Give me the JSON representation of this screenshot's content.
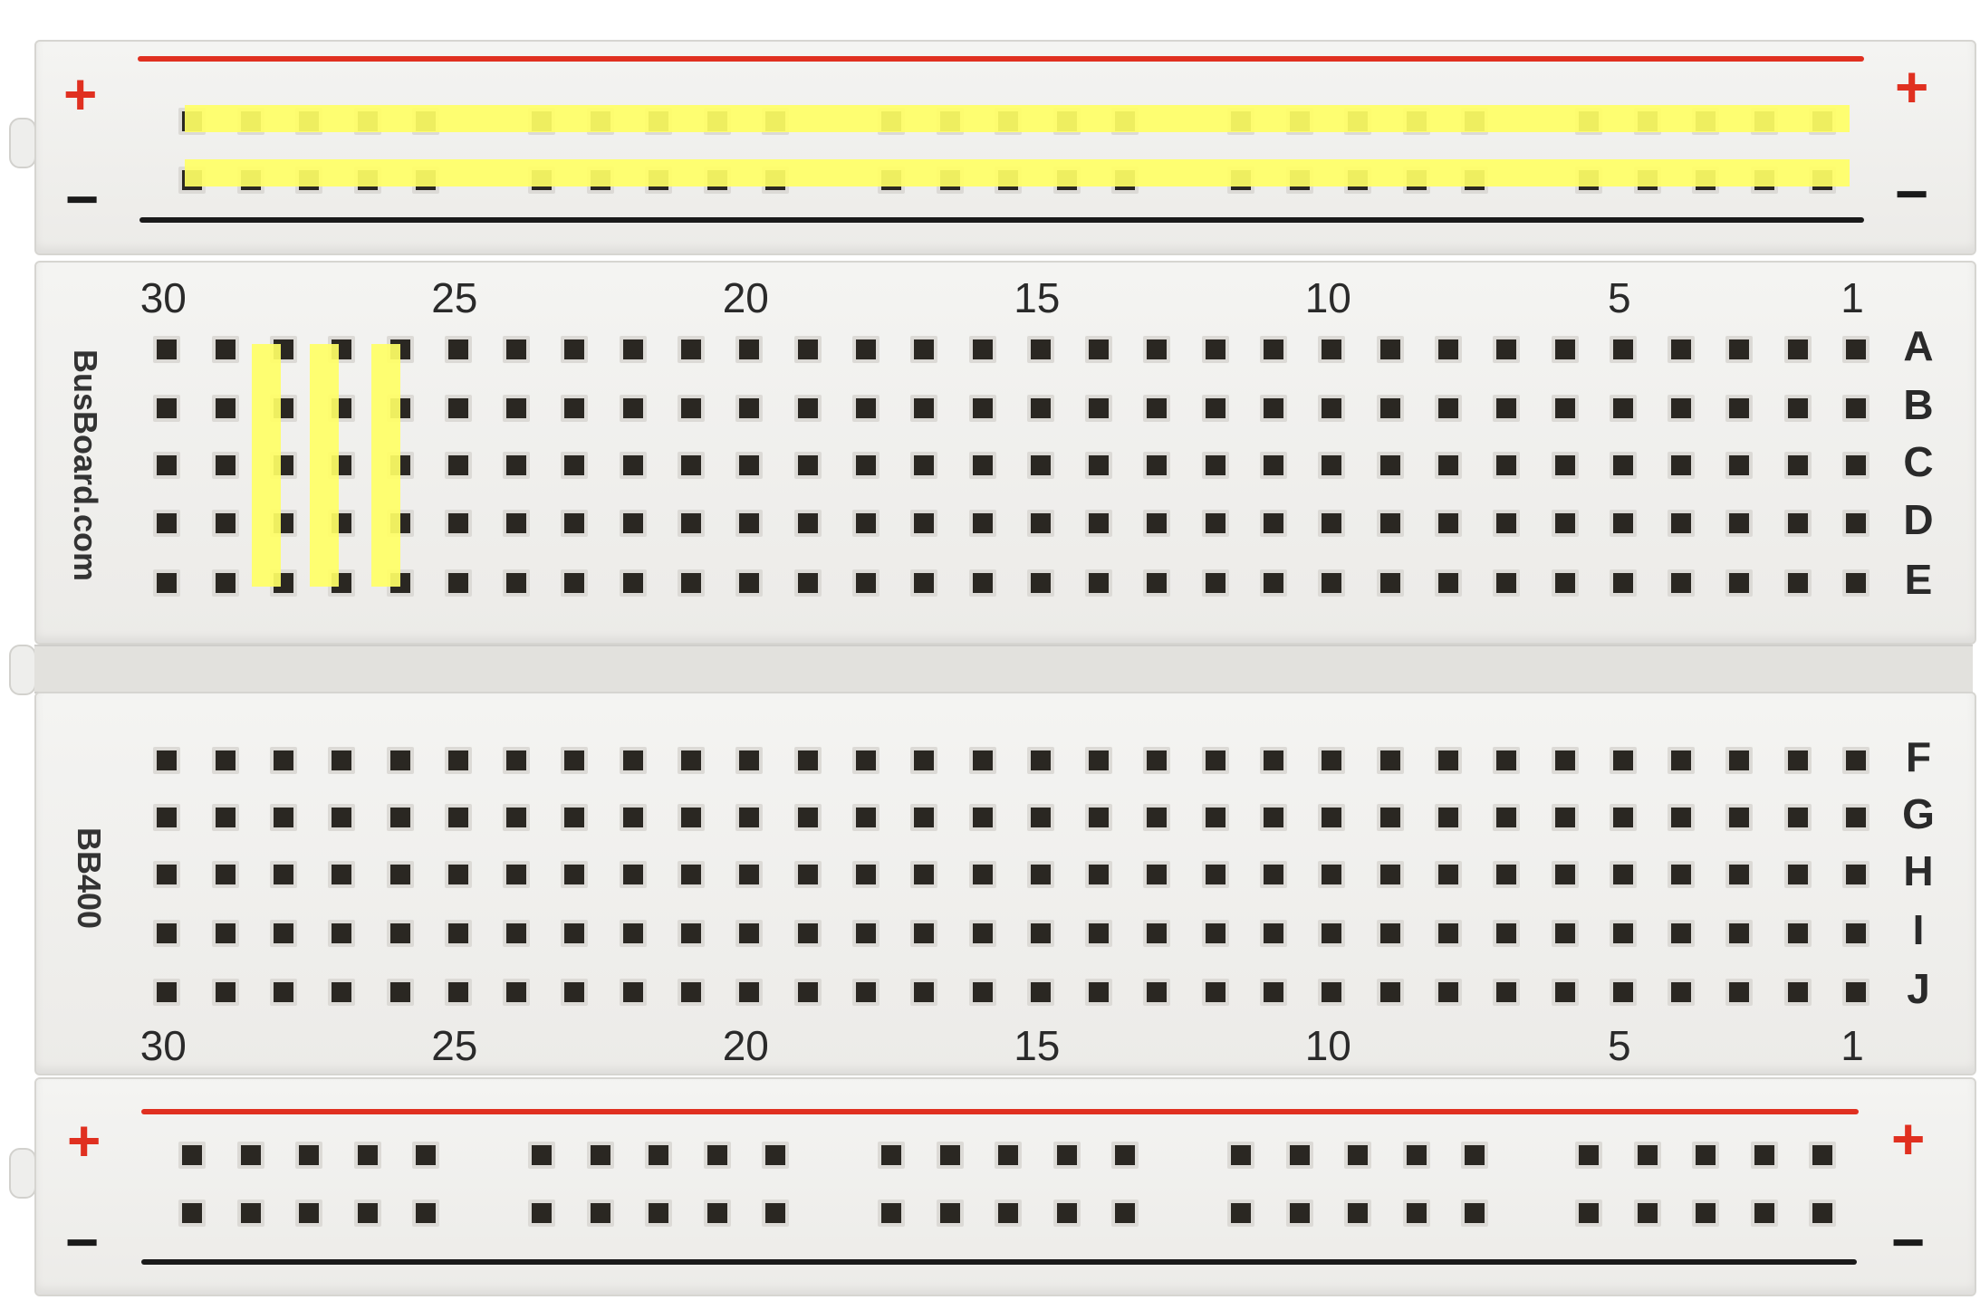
{
  "brand": "BusBoard.com",
  "model": "BB400",
  "column_numbers_top": [
    "30",
    "25",
    "20",
    "15",
    "10",
    "5",
    "1"
  ],
  "column_numbers_bottom": [
    "30",
    "25",
    "20",
    "15",
    "10",
    "5",
    "1"
  ],
  "row_letters_top": [
    "A",
    "B",
    "C",
    "D",
    "E"
  ],
  "row_letters_bottom": [
    "F",
    "G",
    "H",
    "I",
    "J"
  ],
  "rail_signs": {
    "plus": "+",
    "minus": "−"
  },
  "colors": {
    "board": "#f0efec",
    "positive_rail": "#e03020",
    "negative_rail": "#1a1a1a",
    "highlight": "#ffff66",
    "hole": "#2a2722"
  },
  "highlights": {
    "power_rail_rows": 2,
    "terminal_columns": 3
  }
}
